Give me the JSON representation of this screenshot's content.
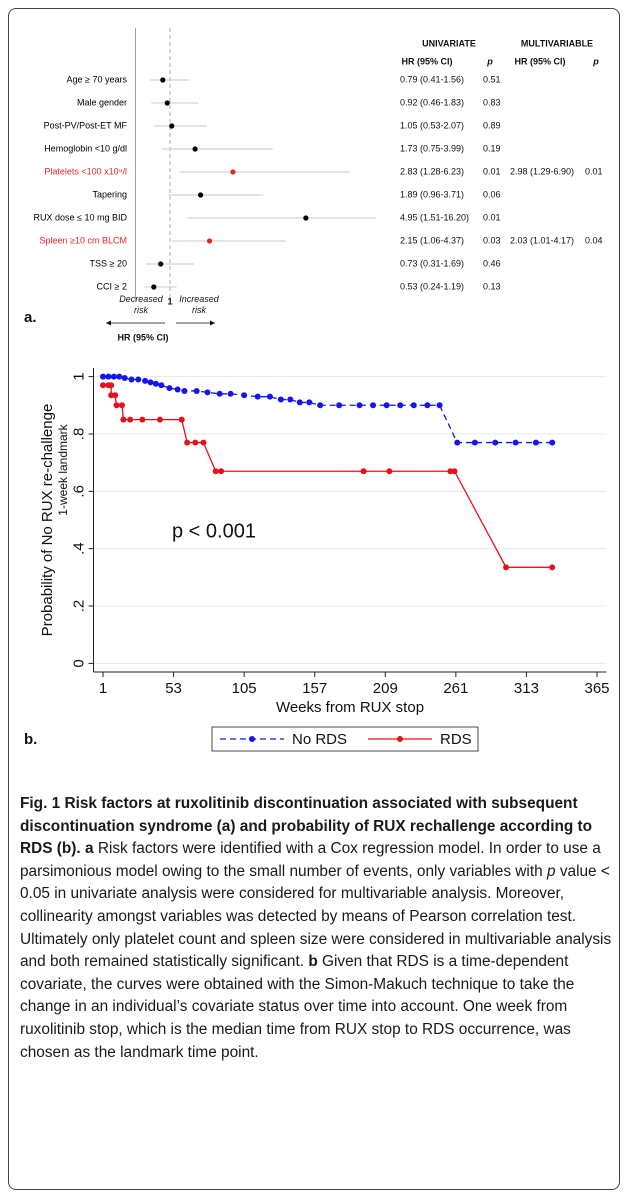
{
  "chart_data": [
    {
      "type": "forest",
      "panel_label": "a.",
      "column_headers": [
        "UNIVARIATE",
        "MULTIVARIABLE"
      ],
      "subheaders": [
        "HR (95% CI)",
        "p",
        "HR (95% CI)",
        "p"
      ],
      "categories": [
        "Age ≥ 70 years",
        "Male gender",
        "Post-PV/Post-ET MF",
        "Hemoglobin <10 g/dl",
        "Platelets <100 x10⁹/l",
        "Tapering",
        "RUX dose ≤ 10 mg BID",
        "Spleen ≥10 cm BLCM",
        "TSS ≥ 20",
        "CCI ≥ 2"
      ],
      "values": [
        0.79,
        0.92,
        1.05,
        1.73,
        2.83,
        1.89,
        4.95,
        2.15,
        0.73,
        0.53
      ],
      "ci_low": [
        0.41,
        0.46,
        0.53,
        0.75,
        1.28,
        0.96,
        1.51,
        1.06,
        0.31,
        0.24
      ],
      "ci_high": [
        1.56,
        1.83,
        2.07,
        3.99,
        6.23,
        3.71,
        16.2,
        4.37,
        1.69,
        1.19
      ],
      "value_labels": [
        "0.79 (0.41-1.56)",
        "0.92 (0.46-1.83)",
        "1.05 (0.53-2.07)",
        "1.73 (0.75-3.99)",
        "2.83 (1.28-6.23)",
        "1.89 (0.96-3.71)",
        "4.95 (1.51-16.20)",
        "2.15 (1.06-4.37)",
        "0.73 (0.31-1.69)",
        "0.53 (0.24-1.19)"
      ],
      "p_values": [
        0.51,
        0.83,
        0.89,
        0.19,
        0.01,
        0.06,
        0.01,
        0.03,
        0.46,
        0.13
      ],
      "multi_value_labels": [
        null,
        null,
        null,
        null,
        "2.98 (1.29-6.90)",
        null,
        null,
        "2.03 (1.01-4.17)",
        null,
        null
      ],
      "multi_p_values": [
        null,
        null,
        null,
        null,
        0.01,
        null,
        null,
        0.04,
        null,
        null
      ],
      "colors": [
        "#000000",
        "#000000",
        "#000000",
        "#000000",
        "#e8262a",
        "#000000",
        "#000000",
        "#e8262a",
        "#000000",
        "#000000"
      ],
      "ci_color": "#c8c8c8",
      "xlim": [
        0,
        7
      ],
      "xticks": [
        1
      ],
      "annotations": [
        "Decreased risk",
        "Increased risk"
      ],
      "xlabel": "HR (95% CI)"
    },
    {
      "type": "line",
      "panel_label": "b.",
      "xlabel": "Weeks from RUX stop",
      "ylabel": "Probability of No RUX re-challenge",
      "ylabel_sub": "1-week landmark",
      "annotation": "p < 0.001",
      "xlim": [
        -6,
        372
      ],
      "xticks": [
        1,
        53,
        105,
        157,
        209,
        261,
        313,
        365
      ],
      "ylim": [
        -0.03,
        1.03
      ],
      "yticks": [
        0,
        {
          "value": 0.2,
          "label": ".2"
        },
        {
          "value": 0.4,
          "label": ".4"
        },
        {
          "value": 0.6,
          "label": ".6"
        },
        {
          "value": 0.8,
          "label": ".8"
        },
        1
      ],
      "grid": true,
      "legend": "bottom",
      "series": [
        {
          "name": "No RDS",
          "color": "#1414f0",
          "dashed": true,
          "x": [
            1,
            5,
            9,
            13,
            17,
            22,
            27,
            32,
            36,
            40,
            44,
            50,
            56,
            61,
            70,
            78,
            87,
            95,
            105,
            115,
            124,
            132,
            139,
            146,
            153,
            161,
            175,
            190,
            200,
            210,
            220,
            230,
            240,
            249,
            262,
            275,
            290,
            305,
            320,
            332
          ],
          "values": [
            1,
            1,
            1,
            1,
            0.995,
            0.99,
            0.99,
            0.985,
            0.98,
            0.975,
            0.97,
            0.96,
            0.955,
            0.95,
            0.95,
            0.945,
            0.94,
            0.94,
            0.935,
            0.93,
            0.93,
            0.92,
            0.92,
            0.91,
            0.91,
            0.9,
            0.9,
            0.9,
            0.9,
            0.9,
            0.9,
            0.9,
            0.9,
            0.9,
            0.77,
            0.77,
            0.77,
            0.77,
            0.77,
            0.77
          ]
        },
        {
          "name": "RDS",
          "color": "#e8101a",
          "dashed": false,
          "x": [
            1,
            5,
            7,
            7,
            10,
            11,
            15,
            16,
            21,
            30,
            43,
            59,
            63,
            69,
            75,
            84,
            88,
            193,
            212,
            257,
            260,
            298,
            332
          ],
          "values": [
            0.97,
            0.97,
            0.97,
            0.935,
            0.935,
            0.9,
            0.9,
            0.85,
            0.85,
            0.85,
            0.85,
            0.85,
            0.77,
            0.77,
            0.77,
            0.67,
            0.67,
            0.67,
            0.67,
            0.67,
            0.67,
            0.335,
            0.335
          ]
        }
      ]
    }
  ],
  "caption": {
    "title": "Fig. 1 Risk factors at ruxolitinib discontinuation associated with subsequent discontinuation syndrome (a) and probability of RUX rechallenge according to RDS (b).",
    "a_label": "a",
    "a_text": "Risk factors were identified with a Cox regression model. In order to use a parsimonious model owing to the small number of events, only variables with",
    "a_italic": "p",
    "a_text_2": "value < 0.05 in univariate analysis were considered for multivariable analysis. Moreover, collinearity amongst variables was detected by means of Pearson correlation test. Ultimately only platelet count and spleen size were considered in multivariable analysis and both remained statistically significant.",
    "b_label": "b",
    "b_text": "Given that RDS is a time-dependent covariate, the curves were obtained with the Simon-Makuch technique to take the change in an individual’s covariate status over time into account. One week from ruxolitinib stop, which is the median time from RUX stop to RDS occurrence, was chosen as the landmark time point."
  }
}
